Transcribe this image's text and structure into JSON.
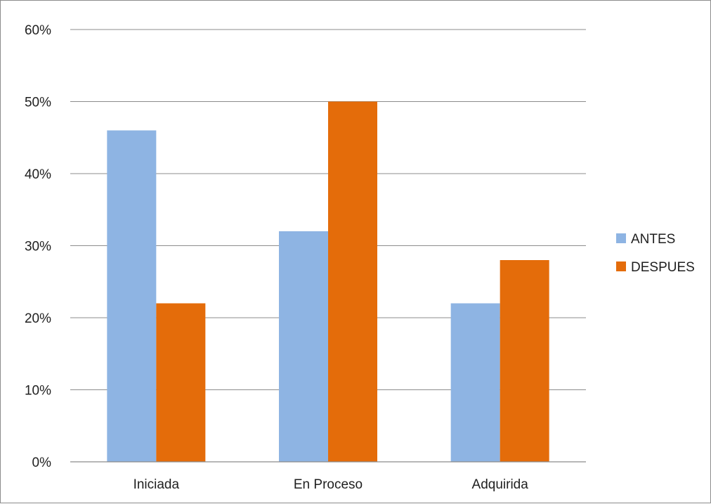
{
  "chart_data": {
    "type": "bar",
    "title": "",
    "xlabel": "",
    "ylabel": "",
    "categories": [
      "Iniciada",
      "En Proceso",
      "Adquirida"
    ],
    "series": [
      {
        "name": "ANTES",
        "values": [
          46,
          32,
          22
        ],
        "color": "#8eb4e3"
      },
      {
        "name": "DESPUES",
        "values": [
          22,
          50,
          28
        ],
        "color": "#e46c0a"
      }
    ],
    "ylim": [
      0,
      60
    ],
    "y_ticks": [
      "0%",
      "10%",
      "20%",
      "30%",
      "40%",
      "50%",
      "60%"
    ],
    "y_tick_values": [
      0,
      10,
      20,
      30,
      40,
      50,
      60
    ],
    "grid": true,
    "legend_position": "right"
  }
}
